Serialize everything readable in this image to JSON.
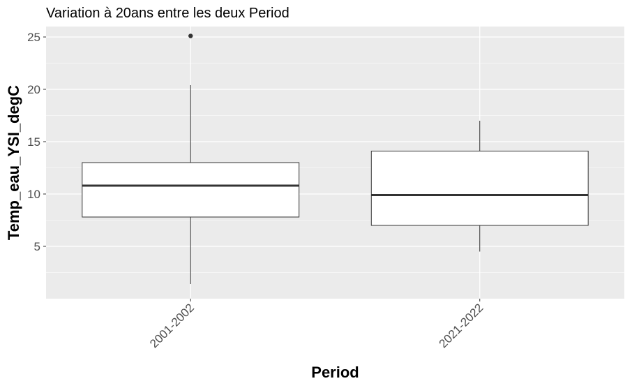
{
  "chart_data": {
    "type": "boxplot",
    "title": "Variation à 20ans entre les deux Period",
    "xlabel": "Period",
    "ylabel": "Temp_eau_YSI_degC",
    "ylim": [
      0,
      26
    ],
    "y_ticks": [
      5,
      10,
      15,
      20,
      25
    ],
    "categories": [
      "2001-2002",
      "2021-2022"
    ],
    "boxes": [
      {
        "category": "2001-2002",
        "whisker_low": 1.4,
        "q1": 7.8,
        "median": 10.8,
        "q3": 13.0,
        "whisker_high": 20.4,
        "outliers": [
          25.1
        ]
      },
      {
        "category": "2021-2022",
        "whisker_low": 4.5,
        "q1": 7.0,
        "median": 9.9,
        "q3": 14.1,
        "whisker_high": 17.0,
        "outliers": []
      }
    ],
    "grid": true,
    "panel_background": "#ebebeb",
    "grid_color": "#ffffff",
    "box_fill": "#ffffff",
    "line_color": "#333333"
  }
}
